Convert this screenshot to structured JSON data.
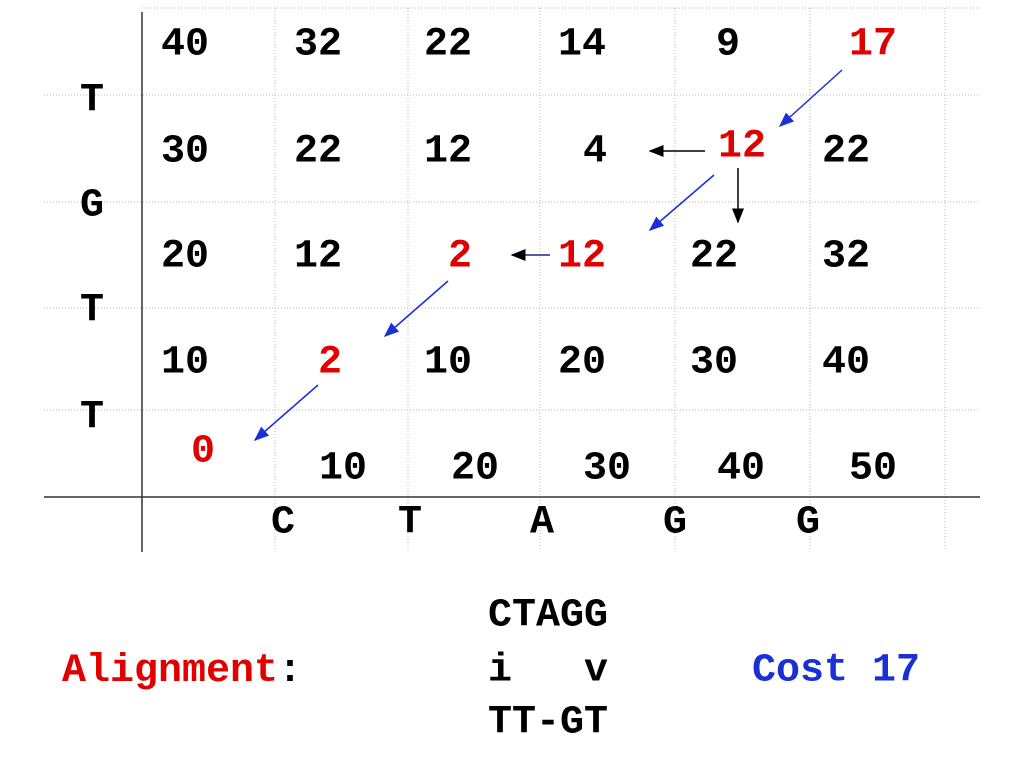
{
  "row_labels": [
    "T",
    "G",
    "T",
    "T"
  ],
  "column_labels": [
    "C",
    "T",
    "A",
    "G",
    "G"
  ],
  "matrix": {
    "rows": [
      [
        "40",
        "32",
        "22",
        "14",
        "9",
        "17"
      ],
      [
        "30",
        "22",
        "12",
        "4",
        "12",
        "22"
      ],
      [
        "20",
        "12",
        "2",
        "12",
        "22",
        "32"
      ],
      [
        "10",
        "2",
        "10",
        "20",
        "30",
        "40"
      ],
      [
        "0",
        "10",
        "20",
        "30",
        "40",
        "50"
      ]
    ]
  },
  "alignment": {
    "label": "Alignment",
    "separator": ":",
    "top": "CTAGG",
    "marks": "i   v",
    "bottom": "TT-GT"
  },
  "cost": "Cost 17"
}
